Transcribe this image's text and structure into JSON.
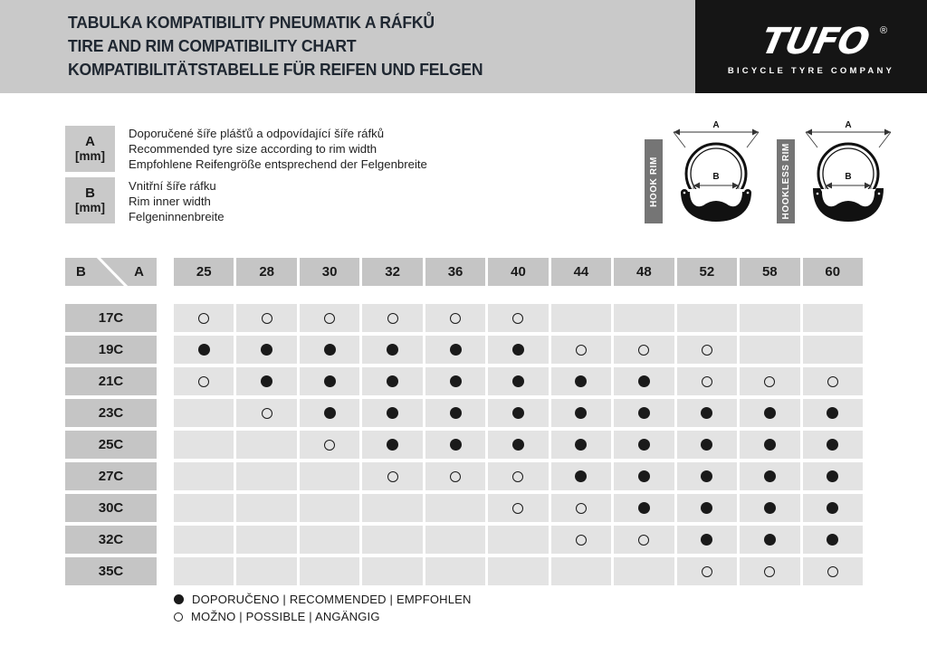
{
  "header": {
    "title_lines": [
      "TABULKA KOMPATIBILITY PNEUMATIK A RÁFKŮ",
      "TIRE AND RIM COMPATIBILITY CHART",
      "KOMPATIBILITÄTSTABELLE FÜR REIFEN UND FELGEN"
    ],
    "logo": {
      "brand": "TUFO",
      "registered": "®",
      "tagline": "BICYCLE TYRE COMPANY"
    }
  },
  "legend": {
    "items": [
      {
        "symbol": "A",
        "unit": "[mm]",
        "lines": [
          "Doporučené šíře plášťů a odpovídající šíře ráfků",
          "Recommended tyre size according to rim width",
          "Empfohlene Reifengröße entsprechend der Felgenbreite"
        ]
      },
      {
        "symbol": "B",
        "unit": "[mm]",
        "lines": [
          "Vnitřní šíře ráfku",
          "Rim inner width",
          "Felgeninnenbreite"
        ]
      }
    ]
  },
  "diagrams": [
    {
      "label": "HOOK RIM",
      "dim_top": "A",
      "dim_inner": "B"
    },
    {
      "label": "HOOKLESS RIM",
      "dim_top": "A",
      "dim_inner": "B"
    }
  ],
  "chart_data": {
    "type": "table",
    "title": "TIRE AND RIM COMPATIBILITY CHART",
    "corner": {
      "row_axis": "B",
      "col_axis": "A"
    },
    "columns": [
      "25",
      "28",
      "30",
      "32",
      "36",
      "40",
      "44",
      "48",
      "52",
      "58",
      "60"
    ],
    "rows": [
      {
        "label": "17C",
        "cells": [
          "possible",
          "possible",
          "possible",
          "possible",
          "possible",
          "possible",
          "",
          "",
          "",
          "",
          ""
        ]
      },
      {
        "label": "19C",
        "cells": [
          "recommended",
          "recommended",
          "recommended",
          "recommended",
          "recommended",
          "recommended",
          "possible",
          "possible",
          "possible",
          "",
          ""
        ]
      },
      {
        "label": "21C",
        "cells": [
          "possible",
          "recommended",
          "recommended",
          "recommended",
          "recommended",
          "recommended",
          "recommended",
          "recommended",
          "possible",
          "possible",
          "possible"
        ]
      },
      {
        "label": "23C",
        "cells": [
          "",
          "possible",
          "recommended",
          "recommended",
          "recommended",
          "recommended",
          "recommended",
          "recommended",
          "recommended",
          "recommended",
          "recommended"
        ]
      },
      {
        "label": "25C",
        "cells": [
          "",
          "",
          "possible",
          "recommended",
          "recommended",
          "recommended",
          "recommended",
          "recommended",
          "recommended",
          "recommended",
          "recommended"
        ]
      },
      {
        "label": "27C",
        "cells": [
          "",
          "",
          "",
          "possible",
          "possible",
          "possible",
          "recommended",
          "recommended",
          "recommended",
          "recommended",
          "recommended"
        ]
      },
      {
        "label": "30C",
        "cells": [
          "",
          "",
          "",
          "",
          "",
          "possible",
          "possible",
          "recommended",
          "recommended",
          "recommended",
          "recommended"
        ]
      },
      {
        "label": "32C",
        "cells": [
          "",
          "",
          "",
          "",
          "",
          "",
          "possible",
          "possible",
          "recommended",
          "recommended",
          "recommended"
        ]
      },
      {
        "label": "35C",
        "cells": [
          "",
          "",
          "",
          "",
          "",
          "",
          "",
          "",
          "possible",
          "possible",
          "possible"
        ]
      }
    ],
    "legend_key": {
      "recommended_symbol": "filled-circle",
      "possible_symbol": "open-circle"
    }
  },
  "footer": {
    "recommended_label": "DOPORUČENO | RECOMMENDED | EMPFOHLEN",
    "possible_label": "MOŽNO | POSSIBLE | ANGÄNGIG"
  },
  "colors": {
    "band_gray": "#c9c9c9",
    "header_cell_gray": "#c5c5c5",
    "data_cell_gray": "#e3e3e3",
    "logo_black": "#151515",
    "bar_gray": "#757575",
    "ink": "#1a1a1a",
    "title_ink": "#1f2731"
  }
}
